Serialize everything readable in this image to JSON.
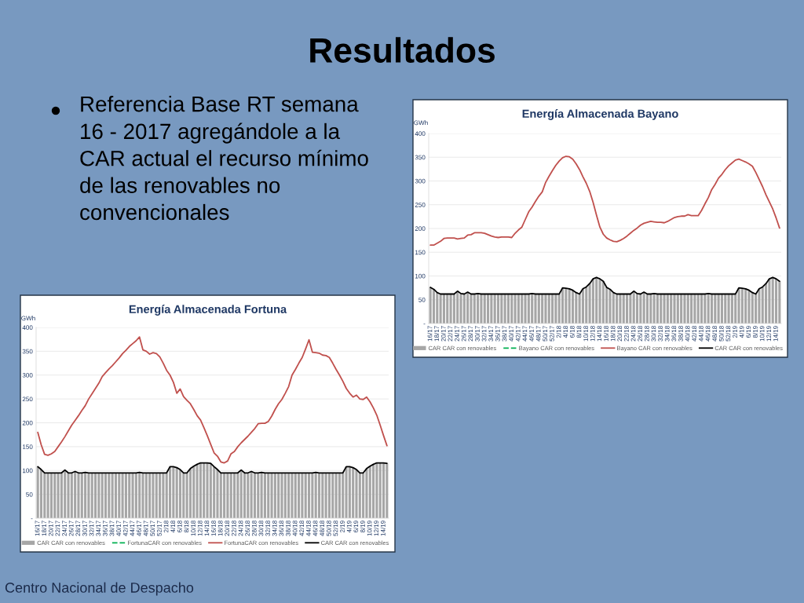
{
  "chart_data": [
    {
      "type": "other",
      "title": "Resultados",
      "annotations": [
        "Referencia Base RT semana 16 - 2017 agregándole a la CAR actual el recurso mínimo de las renovables no convencionales",
        "Centro Nacional de Despacho"
      ]
    },
    {
      "type": "bar",
      "title": "Energía Almacenada Bayano",
      "ylabel": "GWh",
      "categories": [
        "16/17",
        null,
        "18/17",
        null,
        "20/17",
        null,
        "22/17",
        null,
        "24/17",
        null,
        "26/17",
        null,
        "28/17",
        null,
        "30/17",
        null,
        "32/17",
        null,
        "34/17",
        null,
        "36/17",
        null,
        "38/17",
        null,
        "40/17",
        null,
        "42/17",
        null,
        "44/17",
        null,
        "46/17",
        null,
        "48/17",
        null,
        "50/17",
        null,
        "52/17",
        null,
        "2/18",
        null,
        "4/18",
        null,
        "6/18",
        null,
        "8/18",
        null,
        "10/18",
        null,
        "12/18",
        null,
        "14/18",
        null,
        "16/18",
        null,
        "18/18",
        null,
        "20/18",
        null,
        "22/18",
        null,
        "24/18",
        null,
        "26/18",
        null,
        "28/18",
        null,
        "30/18",
        null,
        "32/18",
        null,
        "34/18",
        null,
        "36/18",
        null,
        "38/18",
        null,
        "40/18",
        null,
        "42/18",
        null,
        "44/18",
        null,
        "46/18",
        null,
        "48/18",
        null,
        "50/18",
        null,
        "52/18",
        null,
        "2/19",
        null,
        "4/19",
        null,
        "6/19",
        null,
        "8/19",
        null,
        "10/19",
        null,
        "12/19",
        null,
        "14/19",
        null
      ],
      "series": [
        {
          "type": "bar",
          "name": "CAR CAR con renovables",
          "color": "#a6a6a6",
          "values": [
            76,
            72,
            65,
            62,
            62,
            62,
            62,
            62,
            68,
            63,
            62,
            66,
            62,
            62,
            63,
            62,
            62,
            62,
            62,
            62,
            62,
            62,
            62,
            62,
            62,
            62,
            62,
            62,
            62,
            62,
            63,
            62,
            62,
            62,
            62,
            62,
            62,
            62,
            62,
            75,
            74,
            73,
            70,
            65,
            62,
            73,
            77,
            84,
            94,
            97,
            94,
            89,
            76,
            72,
            65,
            62,
            62,
            62,
            62,
            62,
            68,
            63,
            62,
            66,
            62,
            62,
            63,
            62,
            62,
            62,
            62,
            62,
            62,
            62,
            62,
            62,
            62,
            62,
            62,
            62,
            62,
            62,
            63,
            62,
            62,
            62,
            62,
            62,
            62,
            62,
            62,
            75,
            74,
            73,
            70,
            65,
            62,
            73,
            77,
            84,
            94,
            97,
            94,
            89
          ]
        },
        {
          "type": "line",
          "name": "Bayano CAR con renovables",
          "color": "#00b050",
          "line_style": "dashed",
          "values": [
            null,
            null,
            null,
            null,
            null,
            null,
            null,
            null,
            null,
            null,
            null,
            null,
            null,
            null,
            null,
            null,
            null,
            null,
            null,
            null,
            null,
            null,
            null,
            null,
            null,
            null,
            null,
            null,
            null,
            null,
            null,
            null,
            null,
            null,
            null,
            null,
            null,
            null,
            null,
            null,
            null,
            null,
            null,
            null,
            null,
            null,
            null,
            null,
            null,
            null,
            null,
            null,
            null,
            null,
            null,
            null,
            null,
            null,
            null,
            null,
            null,
            null,
            null,
            null,
            null,
            null,
            null,
            null,
            null,
            null,
            null,
            null,
            null,
            null,
            null,
            null,
            null,
            null,
            null,
            null,
            null,
            null,
            null,
            null,
            null,
            null,
            null,
            null,
            null,
            null,
            null,
            null,
            null,
            null,
            null,
            null,
            null,
            null,
            null,
            null,
            null,
            null,
            null,
            null
          ]
        },
        {
          "type": "line",
          "name": "Bayano CAR con renovables",
          "color": "#c0504d",
          "values": [
            165,
            165,
            169,
            173,
            179,
            180,
            180,
            180,
            178,
            179,
            180,
            186,
            187,
            191,
            191,
            191,
            190,
            187,
            184,
            182,
            181,
            182,
            182,
            182,
            181,
            190,
            197,
            203,
            219,
            235,
            245,
            257,
            268,
            277,
            297,
            310,
            322,
            333,
            342,
            349,
            352,
            351,
            346,
            336,
            324,
            309,
            295,
            278,
            255,
            228,
            203,
            188,
            180,
            176,
            173,
            172,
            175,
            179,
            184,
            190,
            196,
            201,
            207,
            211,
            213,
            215,
            214,
            213,
            213,
            212,
            215,
            219,
            223,
            225,
            226,
            226,
            229,
            227,
            227,
            227,
            238,
            252,
            265,
            282,
            293,
            306,
            314,
            324,
            332,
            338,
            344,
            346,
            343,
            340,
            336,
            331,
            318,
            303,
            288,
            271,
            256,
            241,
            222,
            201
          ]
        },
        {
          "type": "line",
          "name": "CAR CAR con renovables",
          "color": "#000000",
          "values": [
            76,
            72,
            65,
            62,
            62,
            62,
            62,
            62,
            68,
            63,
            62,
            66,
            62,
            62,
            63,
            62,
            62,
            62,
            62,
            62,
            62,
            62,
            62,
            62,
            62,
            62,
            62,
            62,
            62,
            62,
            63,
            62,
            62,
            62,
            62,
            62,
            62,
            62,
            62,
            75,
            74,
            73,
            70,
            65,
            62,
            73,
            77,
            84,
            94,
            97,
            94,
            89,
            76,
            72,
            65,
            62,
            62,
            62,
            62,
            62,
            68,
            63,
            62,
            66,
            62,
            62,
            63,
            62,
            62,
            62,
            62,
            62,
            62,
            62,
            62,
            62,
            62,
            62,
            62,
            62,
            62,
            62,
            63,
            62,
            62,
            62,
            62,
            62,
            62,
            62,
            62,
            75,
            74,
            73,
            70,
            65,
            62,
            73,
            77,
            84,
            94,
            97,
            94,
            89
          ]
        }
      ],
      "ylim": [
        0,
        400
      ],
      "yticks": [
        {
          "value": 0,
          "label": "-"
        },
        50,
        100,
        150,
        200,
        250,
        300,
        350,
        400
      ],
      "grid": "y",
      "legend": "bottom"
    },
    {
      "type": "bar",
      "title": "Energía Almacenada Fortuna",
      "ylabel": "GWh",
      "categories": [
        "16/17",
        null,
        "18/17",
        null,
        "20/17",
        null,
        "22/17",
        null,
        "24/17",
        null,
        "26/17",
        null,
        "28/17",
        null,
        "30/17",
        null,
        "32/17",
        null,
        "34/17",
        null,
        "36/17",
        null,
        "38/17",
        null,
        "40/17",
        null,
        "42/17",
        null,
        "44/17",
        null,
        "46/17",
        null,
        "48/17",
        null,
        "50/17",
        null,
        "52/17",
        null,
        "2/18",
        null,
        "4/18",
        null,
        "6/18",
        null,
        "8/18",
        null,
        "10/18",
        null,
        "12/18",
        null,
        "14/18",
        null,
        "16/18",
        null,
        "18/18",
        null,
        "20/18",
        null,
        "22/18",
        null,
        "24/18",
        null,
        "26/18",
        null,
        "28/18",
        null,
        "30/18",
        null,
        "32/18",
        null,
        "34/18",
        null,
        "36/18",
        null,
        "38/18",
        null,
        "40/18",
        null,
        "42/18",
        null,
        "44/18",
        null,
        "46/18",
        null,
        "48/18",
        null,
        "50/18",
        null,
        "52/18",
        null,
        "2/19",
        null,
        "4/19",
        null,
        "6/19",
        null,
        "8/19",
        null,
        "10/19",
        null,
        "12/19",
        null,
        "14/19",
        null
      ],
      "series": [
        {
          "type": "bar",
          "name": "CAR CAR con renovables",
          "color": "#a6a6a6",
          "values": [
            108,
            102,
            95,
            95,
            95,
            95,
            95,
            95,
            101,
            95,
            95,
            98,
            95,
            95,
            96,
            95,
            95,
            95,
            95,
            95,
            95,
            95,
            95,
            95,
            95,
            95,
            95,
            95,
            95,
            95,
            96,
            95,
            95,
            95,
            95,
            95,
            95,
            95,
            95,
            108,
            108,
            106,
            102,
            95,
            95,
            104,
            109,
            113,
            116,
            116,
            116,
            115,
            108,
            102,
            95,
            95,
            95,
            95,
            95,
            95,
            101,
            95,
            95,
            98,
            95,
            95,
            96,
            95,
            95,
            95,
            95,
            95,
            95,
            95,
            95,
            95,
            95,
            95,
            95,
            95,
            95,
            95,
            96,
            95,
            95,
            95,
            95,
            95,
            95,
            95,
            95,
            108,
            108,
            106,
            102,
            95,
            95,
            104,
            109,
            113,
            116,
            116,
            116,
            115
          ]
        },
        {
          "type": "line",
          "name": "FortunaCAR con renovables",
          "color": "#00b050",
          "line_style": "dashed",
          "values": [
            null,
            null,
            null,
            null,
            null,
            null,
            null,
            null,
            null,
            null,
            null,
            null,
            null,
            null,
            null,
            null,
            null,
            null,
            null,
            null,
            null,
            null,
            null,
            null,
            null,
            null,
            null,
            null,
            null,
            null,
            null,
            null,
            null,
            null,
            null,
            null,
            null,
            null,
            null,
            null,
            null,
            null,
            null,
            null,
            null,
            null,
            null,
            null,
            null,
            null,
            null,
            null,
            null,
            null,
            null,
            null,
            null,
            null,
            null,
            null,
            null,
            null,
            null,
            null,
            null,
            null,
            null,
            null,
            null,
            null,
            null,
            null,
            null,
            null,
            null,
            null,
            null,
            null,
            null,
            null,
            null,
            null,
            null,
            null,
            null,
            null,
            null,
            null,
            null,
            null,
            null,
            null,
            null,
            null,
            null,
            null,
            null,
            null,
            null,
            null,
            null,
            null,
            null,
            null
          ]
        },
        {
          "type": "line",
          "name": "FortunaCAR con renovables",
          "color": "#c0504d",
          "values": [
            180,
            154,
            134,
            132,
            135,
            140,
            150,
            160,
            171,
            183,
            195,
            205,
            215,
            226,
            236,
            250,
            261,
            272,
            283,
            297,
            305,
            313,
            320,
            328,
            336,
            345,
            352,
            360,
            366,
            372,
            380,
            353,
            350,
            344,
            347,
            345,
            338,
            325,
            310,
            300,
            285,
            262,
            271,
            255,
            247,
            240,
            228,
            215,
            206,
            190,
            173,
            155,
            137,
            130,
            118,
            116,
            120,
            135,
            140,
            150,
            158,
            165,
            172,
            180,
            188,
            198,
            199,
            199,
            203,
            214,
            228,
            240,
            249,
            262,
            276,
            300,
            312,
            325,
            337,
            355,
            374,
            348,
            347,
            346,
            342,
            341,
            337,
            325,
            312,
            300,
            287,
            272,
            262,
            254,
            258,
            250,
            249,
            254,
            244,
            231,
            216,
            195,
            173,
            152
          ]
        },
        {
          "type": "line",
          "name": "CAR CAR con renovables",
          "color": "#000000",
          "values": [
            108,
            102,
            95,
            95,
            95,
            95,
            95,
            95,
            101,
            95,
            95,
            98,
            95,
            95,
            96,
            95,
            95,
            95,
            95,
            95,
            95,
            95,
            95,
            95,
            95,
            95,
            95,
            95,
            95,
            95,
            96,
            95,
            95,
            95,
            95,
            95,
            95,
            95,
            95,
            108,
            108,
            106,
            102,
            95,
            95,
            104,
            109,
            113,
            116,
            116,
            116,
            115,
            108,
            102,
            95,
            95,
            95,
            95,
            95,
            95,
            101,
            95,
            95,
            98,
            95,
            95,
            96,
            95,
            95,
            95,
            95,
            95,
            95,
            95,
            95,
            95,
            95,
            95,
            95,
            95,
            95,
            95,
            96,
            95,
            95,
            95,
            95,
            95,
            95,
            95,
            95,
            108,
            108,
            106,
            102,
            95,
            95,
            104,
            109,
            113,
            116,
            116,
            116,
            115
          ]
        }
      ],
      "ylim": [
        0,
        400
      ],
      "yticks": [
        {
          "value": 0,
          "label": "-"
        },
        50,
        100,
        150,
        200,
        250,
        300,
        350,
        400
      ],
      "grid": "y",
      "legend": "bottom"
    }
  ]
}
